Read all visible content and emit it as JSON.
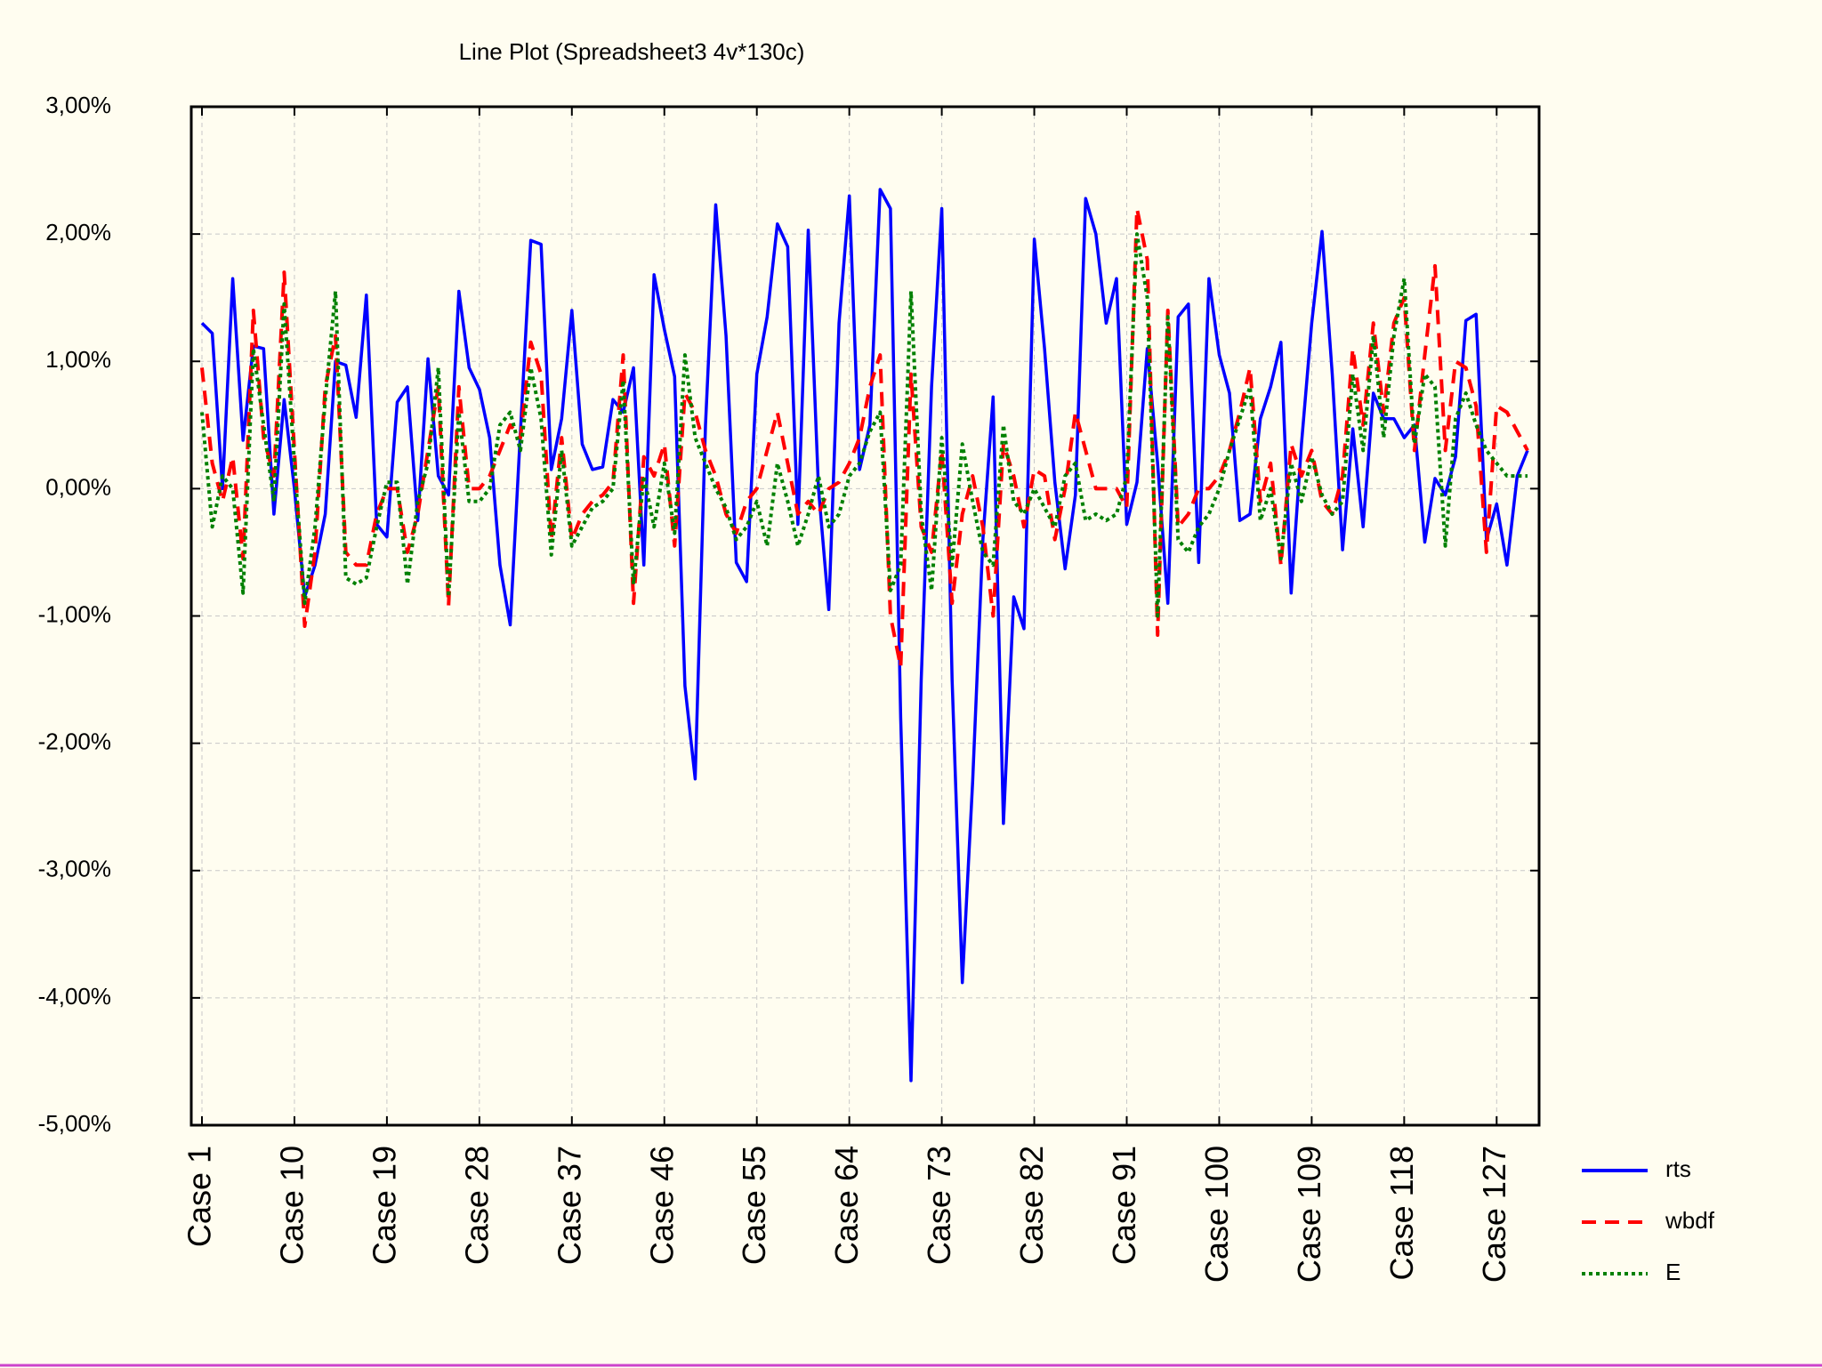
{
  "chart_data": {
    "type": "line",
    "title": "Line Plot (Spreadsheet3 4v*130c)",
    "categories": [
      "Case 1",
      null,
      null,
      null,
      null,
      null,
      null,
      null,
      null,
      "Case 10",
      null,
      null,
      null,
      null,
      null,
      null,
      null,
      null,
      "Case 19",
      null,
      null,
      null,
      null,
      null,
      null,
      null,
      null,
      "Case 28",
      null,
      null,
      null,
      null,
      null,
      null,
      null,
      null,
      "Case 37",
      null,
      null,
      null,
      null,
      null,
      null,
      null,
      null,
      "Case 46",
      null,
      null,
      null,
      null,
      null,
      null,
      null,
      null,
      "Case 55",
      null,
      null,
      null,
      null,
      null,
      null,
      null,
      null,
      "Case 64",
      null,
      null,
      null,
      null,
      null,
      null,
      null,
      null,
      "Case 73",
      null,
      null,
      null,
      null,
      null,
      null,
      null,
      null,
      "Case 82",
      null,
      null,
      null,
      null,
      null,
      null,
      null,
      null,
      "Case 91",
      null,
      null,
      null,
      null,
      null,
      null,
      null,
      null,
      "Case 100",
      null,
      null,
      null,
      null,
      null,
      null,
      null,
      null,
      "Case 109",
      null,
      null,
      null,
      null,
      null,
      null,
      null,
      null,
      "Case 118",
      null,
      null,
      null,
      null,
      null,
      null,
      null,
      null,
      "Case 127",
      null,
      null,
      null
    ],
    "series": [
      {
        "name": "rts",
        "color": "#0000ff",
        "line_style": "solid",
        "values": [
          1.3,
          1.22,
          0,
          1.65,
          0.38,
          1.12,
          1.1,
          -0.2,
          0.7,
          0,
          -0.85,
          -0.6,
          -0.2,
          1.0,
          0.97,
          0.56,
          1.52,
          -0.28,
          -0.38,
          0.68,
          0.8,
          -0.25,
          1.02,
          0.1,
          -0.05,
          1.55,
          0.95,
          0.78,
          0.4,
          -0.6,
          -1.07,
          0.45,
          1.95,
          1.92,
          0.15,
          0.55,
          1.4,
          0.35,
          0.15,
          0.17,
          0.7,
          0.6,
          0.95,
          -0.6,
          1.68,
          1.25,
          0.88,
          -1.55,
          -2.28,
          0.5,
          2.23,
          1.2,
          -0.58,
          -0.73,
          0.9,
          1.35,
          2.08,
          1.9,
          -0.28,
          2.03,
          0,
          -0.95,
          1.3,
          2.3,
          0.15,
          0.5,
          2.35,
          2.2,
          -1.8,
          -4.65,
          -1.5,
          0.8,
          2.2,
          -1.5,
          -3.88,
          -2.3,
          -0.4,
          0.72,
          -2.63,
          -0.85,
          -1.1,
          1.96,
          1.1,
          0.05,
          -0.63,
          -0.05,
          2.28,
          2.0,
          1.3,
          1.65,
          -0.28,
          0.05,
          1.1,
          0.2,
          -0.9,
          1.35,
          1.45,
          -0.58,
          1.65,
          1.05,
          0.75,
          -0.25,
          -0.2,
          0.55,
          0.8,
          1.15,
          -0.82,
          0.35,
          1.3,
          2.02,
          0.9,
          -0.48,
          0.47,
          -0.3,
          0.75,
          0.55,
          0.55,
          0.4,
          0.5,
          -0.42,
          0.08,
          -0.05,
          0.25,
          1.32,
          1.37,
          -0.4,
          -0.12,
          -0.6,
          0.1,
          0.3
        ]
      },
      {
        "name": "wbdf",
        "color": "#ff0000",
        "line_style": "dashed",
        "values": [
          0.95,
          0.2,
          -0.1,
          0.25,
          -0.55,
          1.4,
          0.4,
          0.1,
          1.7,
          0.3,
          -1.08,
          -0.5,
          0.8,
          1.2,
          -0.5,
          -0.6,
          -0.6,
          -0.2,
          0,
          0,
          -0.5,
          -0.2,
          0.3,
          0.8,
          -0.92,
          0.8,
          0,
          0,
          0.1,
          0.3,
          0.5,
          0.4,
          1.15,
          0.9,
          -0.4,
          0.4,
          -0.4,
          -0.2,
          -0.1,
          -0.05,
          0.05,
          1.05,
          -0.9,
          0.25,
          0.1,
          0.35,
          -0.45,
          0.75,
          0.6,
          0.3,
          0.1,
          -0.2,
          -0.35,
          -0.1,
          0,
          0.3,
          0.6,
          0.2,
          -0.2,
          -0.1,
          -0.2,
          0,
          0.05,
          0.2,
          0.4,
          0.8,
          1.05,
          -1.0,
          -1.4,
          0.9,
          -0.3,
          -0.5,
          0.3,
          -0.9,
          -0.2,
          0.1,
          -0.3,
          -1.0,
          0.35,
          0.1,
          -0.3,
          0.15,
          0.1,
          -0.4,
          0,
          0.6,
          0.3,
          0,
          0,
          0,
          -0.15,
          2.2,
          1.8,
          -1.15,
          1.4,
          -0.3,
          -0.2,
          0,
          0,
          0.1,
          0.3,
          0.6,
          0.95,
          -0.1,
          0.2,
          -0.6,
          0.35,
          0.1,
          0.3,
          -0.1,
          -0.2,
          0.1,
          1.1,
          0.5,
          1.3,
          0.6,
          1.3,
          1.5,
          0.3,
          1.05,
          1.75,
          0.3,
          1.0,
          0.95,
          0.65,
          -0.5,
          0.65,
          0.6,
          0.45,
          0.3
        ]
      },
      {
        "name": "E",
        "color": "#008000",
        "line_style": "dotted",
        "values": [
          0.6,
          -0.3,
          0.1,
          0.0,
          -0.82,
          1.1,
          0.5,
          -0.1,
          1.45,
          0.2,
          -0.9,
          -0.3,
          0.7,
          1.55,
          -0.7,
          -0.75,
          -0.7,
          -0.3,
          0.05,
          0.05,
          -0.75,
          -0.1,
          0.2,
          0.95,
          -0.85,
          0.6,
          -0.1,
          -0.1,
          0.0,
          0.5,
          0.6,
          0.3,
          0.95,
          0.55,
          -0.52,
          0.3,
          -0.45,
          -0.3,
          -0.15,
          -0.1,
          0.0,
          0.85,
          -0.75,
          0.1,
          -0.3,
          0.2,
          -0.35,
          1.05,
          0.4,
          0.2,
          0.0,
          -0.15,
          -0.4,
          -0.3,
          -0.1,
          -0.45,
          0.2,
          -0.1,
          -0.45,
          -0.2,
          0.1,
          -0.3,
          -0.2,
          0.1,
          0.2,
          0.45,
          0.6,
          -0.8,
          -0.6,
          1.55,
          -0.2,
          -0.8,
          0.4,
          -0.6,
          0.35,
          -0.1,
          -0.5,
          -0.6,
          0.5,
          -0.1,
          -0.2,
          0.0,
          -0.15,
          -0.3,
          0.1,
          0.2,
          -0.25,
          -0.2,
          -0.25,
          -0.2,
          0.1,
          2.0,
          1.5,
          -1.0,
          1.35,
          -0.4,
          -0.5,
          -0.3,
          -0.2,
          0.0,
          0.3,
          0.55,
          0.8,
          -0.25,
          0.0,
          -0.55,
          0.2,
          -0.1,
          0.25,
          -0.05,
          -0.2,
          -0.1,
          0.9,
          0.3,
          1.2,
          0.4,
          1.2,
          1.65,
          0.35,
          0.9,
          0.8,
          -0.45,
          0.55,
          0.75,
          0.5,
          0.3,
          0.2,
          0.1,
          0.1,
          0.1
        ]
      }
    ],
    "ylim": [
      -5,
      3
    ],
    "yticks": [
      {
        "value": 3,
        "label": "3,00%"
      },
      {
        "value": 2,
        "label": "2,00%"
      },
      {
        "value": 1,
        "label": "1,00%"
      },
      {
        "value": 0,
        "label": "0,00%"
      },
      {
        "value": -1,
        "label": "-1,00%"
      },
      {
        "value": -2,
        "label": "-2,00%"
      },
      {
        "value": -3,
        "label": "-3,00%"
      },
      {
        "value": -4,
        "label": "-4,00%"
      },
      {
        "value": -5,
        "label": "-5,00%"
      }
    ],
    "grid": true,
    "legend": "right"
  }
}
